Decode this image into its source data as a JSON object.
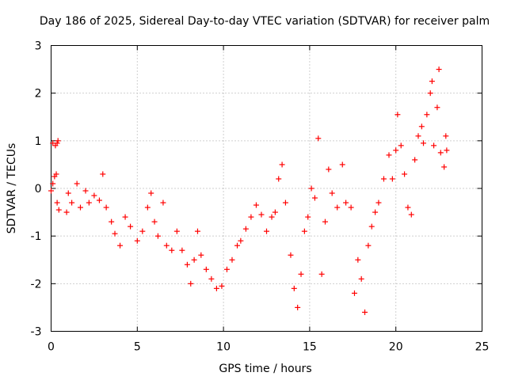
{
  "chart_data": {
    "type": "scatter",
    "title": "Day 186 of 2025, Sidereal Day-to-day VTEC variation (SDTVAR) for receiver palm",
    "xlabel": "GPS time / hours",
    "ylabel": "SDTVAR / TECUs",
    "xlim": [
      0,
      25
    ],
    "ylim": [
      -3,
      3
    ],
    "x_ticks": [
      0,
      5,
      10,
      15,
      20,
      25
    ],
    "y_ticks": [
      -3,
      -2,
      -1,
      0,
      1,
      2,
      3
    ],
    "grid": true,
    "marker": "+",
    "color": "#ff0000",
    "series": [
      {
        "name": "SDTVAR",
        "points": [
          [
            0.0,
            -0.05
          ],
          [
            0.1,
            0.1
          ],
          [
            0.2,
            0.25
          ],
          [
            0.3,
            0.3
          ],
          [
            0.35,
            -0.3
          ],
          [
            0.45,
            -0.45
          ],
          [
            0.1,
            0.95
          ],
          [
            0.25,
            0.9
          ],
          [
            0.35,
            0.95
          ],
          [
            0.4,
            1.0
          ],
          [
            0.9,
            -0.5
          ],
          [
            1.0,
            -0.1
          ],
          [
            1.2,
            -0.3
          ],
          [
            1.5,
            0.1
          ],
          [
            1.7,
            -0.4
          ],
          [
            2.0,
            -0.05
          ],
          [
            2.2,
            -0.3
          ],
          [
            2.5,
            -0.15
          ],
          [
            2.8,
            -0.25
          ],
          [
            3.0,
            0.3
          ],
          [
            3.2,
            -0.4
          ],
          [
            3.5,
            -0.7
          ],
          [
            3.7,
            -0.95
          ],
          [
            4.0,
            -1.2
          ],
          [
            4.3,
            -0.6
          ],
          [
            4.6,
            -0.8
          ],
          [
            5.0,
            -1.1
          ],
          [
            5.3,
            -0.9
          ],
          [
            5.6,
            -0.4
          ],
          [
            5.8,
            -0.1
          ],
          [
            6.0,
            -0.7
          ],
          [
            6.2,
            -1.0
          ],
          [
            6.5,
            -0.3
          ],
          [
            6.7,
            -1.2
          ],
          [
            7.0,
            -1.3
          ],
          [
            7.3,
            -0.9
          ],
          [
            7.6,
            -1.3
          ],
          [
            7.9,
            -1.6
          ],
          [
            8.1,
            -2.0
          ],
          [
            8.3,
            -1.5
          ],
          [
            8.5,
            -0.9
          ],
          [
            8.7,
            -1.4
          ],
          [
            9.0,
            -1.7
          ],
          [
            9.3,
            -1.9
          ],
          [
            9.6,
            -2.1
          ],
          [
            9.9,
            -2.05
          ],
          [
            10.2,
            -1.7
          ],
          [
            10.5,
            -1.5
          ],
          [
            10.8,
            -1.2
          ],
          [
            11.0,
            -1.1
          ],
          [
            11.3,
            -0.85
          ],
          [
            11.6,
            -0.6
          ],
          [
            11.9,
            -0.35
          ],
          [
            12.2,
            -0.55
          ],
          [
            12.5,
            -0.9
          ],
          [
            12.8,
            -0.6
          ],
          [
            13.0,
            -0.5
          ],
          [
            13.2,
            0.2
          ],
          [
            13.4,
            0.5
          ],
          [
            13.6,
            -0.3
          ],
          [
            13.9,
            -1.4
          ],
          [
            14.1,
            -2.1
          ],
          [
            14.3,
            -2.5
          ],
          [
            14.5,
            -1.8
          ],
          [
            14.7,
            -0.9
          ],
          [
            14.9,
            -0.6
          ],
          [
            15.1,
            0.0
          ],
          [
            15.3,
            -0.2
          ],
          [
            15.5,
            1.05
          ],
          [
            15.7,
            -1.8
          ],
          [
            15.9,
            -0.7
          ],
          [
            16.1,
            0.4
          ],
          [
            16.3,
            -0.1
          ],
          [
            16.6,
            -0.4
          ],
          [
            16.9,
            0.5
          ],
          [
            17.1,
            -0.3
          ],
          [
            17.4,
            -0.4
          ],
          [
            17.6,
            -2.2
          ],
          [
            17.8,
            -1.5
          ],
          [
            18.0,
            -1.9
          ],
          [
            18.2,
            -2.6
          ],
          [
            18.4,
            -1.2
          ],
          [
            18.6,
            -0.8
          ],
          [
            18.8,
            -0.5
          ],
          [
            19.0,
            -0.3
          ],
          [
            19.3,
            0.2
          ],
          [
            19.6,
            0.7
          ],
          [
            19.8,
            0.2
          ],
          [
            20.0,
            0.8
          ],
          [
            20.1,
            1.55
          ],
          [
            20.3,
            0.9
          ],
          [
            20.5,
            0.3
          ],
          [
            20.7,
            -0.4
          ],
          [
            20.9,
            -0.55
          ],
          [
            21.1,
            0.6
          ],
          [
            21.3,
            1.1
          ],
          [
            21.5,
            1.3
          ],
          [
            21.6,
            0.95
          ],
          [
            21.8,
            1.55
          ],
          [
            22.0,
            2.0
          ],
          [
            22.1,
            2.25
          ],
          [
            22.2,
            0.9
          ],
          [
            22.4,
            1.7
          ],
          [
            22.5,
            2.5
          ],
          [
            22.6,
            0.75
          ],
          [
            22.8,
            0.45
          ],
          [
            22.9,
            1.1
          ],
          [
            22.95,
            0.8
          ]
        ]
      }
    ]
  }
}
